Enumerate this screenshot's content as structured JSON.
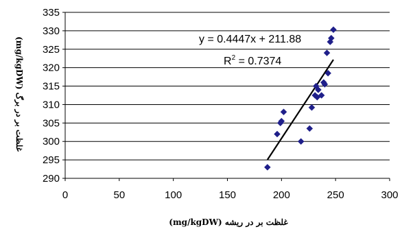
{
  "chart_data": {
    "type": "scatter",
    "xlabel": "غلظت بر در ریشه (mg/kgDW)",
    "ylabel": "غلظت بر در برگ (mg/kgDW)",
    "xlim": [
      0,
      300
    ],
    "ylim": [
      290,
      335
    ],
    "xticks": [
      "0",
      "50",
      "100",
      "150",
      "200",
      "250",
      "300"
    ],
    "yticks": [
      "290",
      "295",
      "300",
      "305",
      "310",
      "315",
      "320",
      "325",
      "330",
      "335"
    ],
    "grid": "horizontal",
    "legend": "none",
    "marker_color": "#1f1f8a",
    "series": [
      {
        "points": [
          [
            187,
            293
          ],
          [
            196,
            302
          ],
          [
            199,
            305
          ],
          [
            200,
            305.5
          ],
          [
            202,
            308
          ],
          [
            218,
            300
          ],
          [
            226,
            303.5
          ],
          [
            228,
            309.2
          ],
          [
            231,
            312.5
          ],
          [
            232,
            315
          ],
          [
            233,
            312
          ],
          [
            234,
            314
          ],
          [
            237,
            312.5
          ],
          [
            239,
            316
          ],
          [
            240,
            315.5
          ],
          [
            242,
            324
          ],
          [
            243,
            318.5
          ],
          [
            245,
            327
          ],
          [
            246,
            328
          ],
          [
            248,
            330.3
          ]
        ]
      }
    ],
    "trendline": {
      "type": "linear",
      "x_range": [
        187,
        248
      ],
      "slope": 0.4447,
      "intercept": 211.88,
      "equation_label": "y = 0.4447x + 211.88",
      "r2_prefix": "R",
      "r2_sup": "2",
      "r2_value": " = 0.7374"
    }
  }
}
